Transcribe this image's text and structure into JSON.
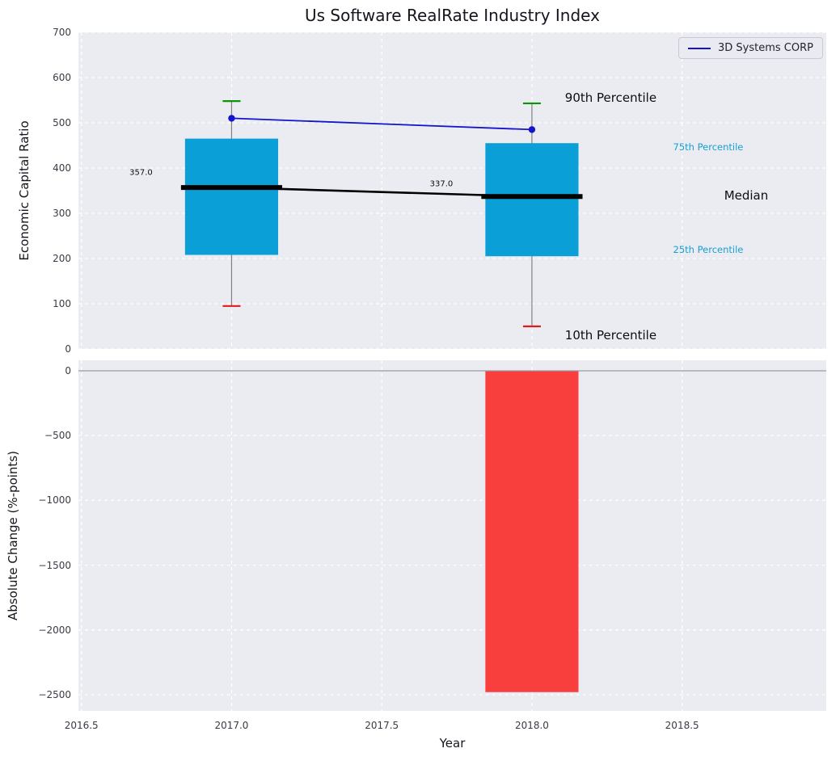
{
  "chart_data": {
    "type": "boxplot_with_bar",
    "title": "Us Software RealRate Industry Index",
    "xlabel": "Year",
    "xlim": [
      2016.49,
      2018.98
    ],
    "xticks": [
      {
        "value": 2016.5,
        "label": "2016.5"
      },
      {
        "value": 2017.0,
        "label": "2017.0"
      },
      {
        "value": 2017.5,
        "label": "2017.5"
      },
      {
        "value": 2018.0,
        "label": "2018.0"
      },
      {
        "value": 2018.5,
        "label": "2018.5"
      }
    ],
    "legend": {
      "label": "3D Systems CORP",
      "position": "upper right"
    },
    "top_panel": {
      "ylabel": "Economic Capital Ratio",
      "ylim": [
        0,
        700
      ],
      "yticks": [
        {
          "value": 0,
          "label": "0"
        },
        {
          "value": 100,
          "label": "100"
        },
        {
          "value": 200,
          "label": "200"
        },
        {
          "value": 300,
          "label": "300"
        },
        {
          "value": 400,
          "label": "400"
        },
        {
          "value": 500,
          "label": "500"
        },
        {
          "value": 600,
          "label": "600"
        },
        {
          "value": 700,
          "label": "700"
        }
      ],
      "box_width": 0.31,
      "boxes": [
        {
          "x": 2017,
          "q1": 208,
          "q3": 465,
          "median": 357,
          "whisker_low": 95,
          "whisker_high": 548
        },
        {
          "x": 2018,
          "q1": 205,
          "q3": 455,
          "median": 337,
          "whisker_low": 50,
          "whisker_high": 543
        }
      ],
      "median_labels": [
        {
          "text": "357.0",
          "x": 2016.66,
          "y": 389
        },
        {
          "text": "337.0",
          "x": 2017.66,
          "y": 364
        }
      ],
      "series": {
        "name": "3D Systems CORP",
        "x": [
          2017,
          2018
        ],
        "y": [
          510,
          485
        ]
      },
      "annotations": [
        {
          "text": "90th Percentile",
          "x": 2018.11,
          "y": 555,
          "style": "large"
        },
        {
          "text": "75th Percentile",
          "x": 2018.47,
          "y": 446,
          "style": "cyan"
        },
        {
          "text": "Median",
          "x": 2018.64,
          "y": 339,
          "style": "large"
        },
        {
          "text": "25th Percentile",
          "x": 2018.47,
          "y": 220,
          "style": "cyan"
        },
        {
          "text": "10th Percentile",
          "x": 2018.11,
          "y": 30,
          "style": "large"
        }
      ]
    },
    "bottom_panel": {
      "ylabel": "Absolute Change (%-points)",
      "ylim": [
        -2625,
        81
      ],
      "yticks": [
        {
          "value": 0,
          "label": "0"
        },
        {
          "value": -500,
          "label": "−500"
        },
        {
          "value": -1000,
          "label": "−1000"
        },
        {
          "value": -1500,
          "label": "−1500"
        },
        {
          "value": -2000,
          "label": "−2000"
        },
        {
          "value": -2500,
          "label": "−2500"
        }
      ],
      "bars": [
        {
          "x": 2018,
          "value": -2480
        }
      ],
      "zero_line": true
    },
    "colors": {
      "box_fill": "#0a9fd6",
      "bar_fill": "#f93e3e",
      "series_line": "#1414cc",
      "median_line": "#000000",
      "whisker": "#808080",
      "cap_high": "#089608",
      "cap_low": "#e01b1b",
      "plot_bg": "#eaecf2",
      "grid": "#ffffff",
      "zero_line": "#9a9aa2",
      "annotation_cyan": "#17a0cf"
    }
  }
}
